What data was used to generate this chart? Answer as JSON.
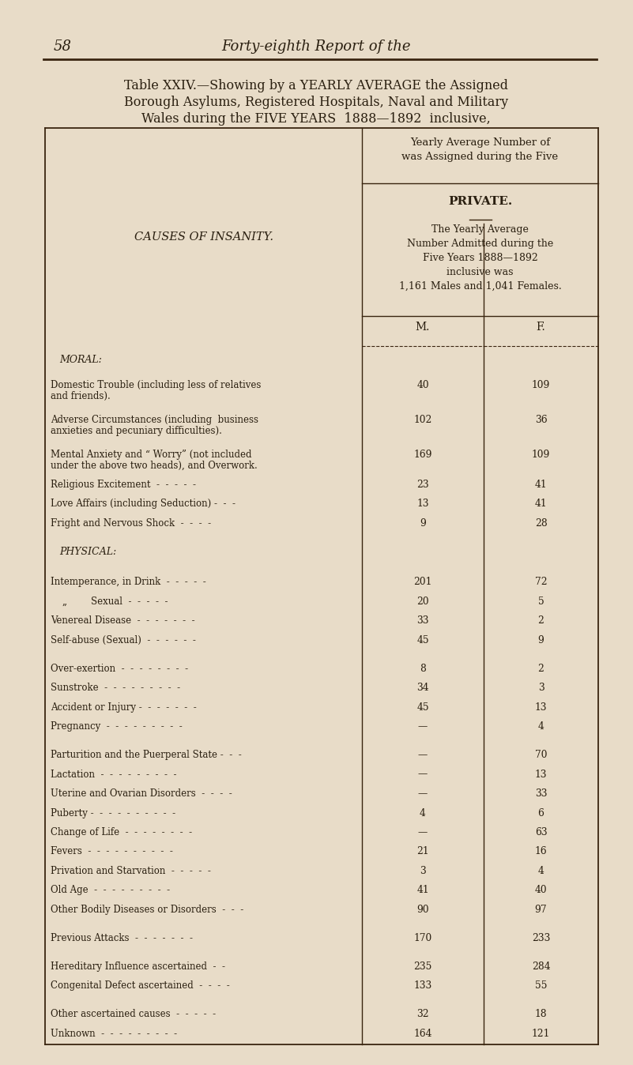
{
  "bg_color": "#e8dcc8",
  "page_number": "58",
  "header_italic": "Forty-eighth Report of the",
  "table_title_line1": "Table XXIV.—Showing by a YEARLY AVERAGE the Assigned",
  "table_title_line2": "Borough Asylums, Registered Hospitals, Naval and Military",
  "table_title_line3_pre": "Wales during the FIVE YEARS",
  "table_title_bold": "1888—1892",
  "table_title_end": "inclusive,",
  "col_header_top": "Yearly Average Number of\nwas Assigned during the Five",
  "col_header_section": "PRIVATE.",
  "col_header_desc": "The Yearly Average\nNumber Admitted during the\nFive Years 1888—1892\ninclusive was\n1,161 Males and 1,041 Females.",
  "col_m": "M.",
  "col_f": "F.",
  "left_col_header": "CAUSES OF INSANITY.",
  "rows": [
    {
      "label": "MORAL:",
      "m": "",
      "f": "",
      "type": "section_header"
    },
    {
      "label": "Domestic Trouble (including less of relatives\n    and friends).",
      "m": "40",
      "f": "109",
      "type": "data"
    },
    {
      "label": "Adverse Circumstances (including  business\n    anxieties and pecuniary difficulties).",
      "m": "102",
      "f": "36",
      "type": "data"
    },
    {
      "label": "Mental Anxiety and “ Worry” (not included\n    under the above two heads), and Overwork.",
      "m": "169",
      "f": "109",
      "type": "data"
    },
    {
      "label": "Religious Excitement  -  -  -  -  -",
      "m": "23",
      "f": "41",
      "type": "data"
    },
    {
      "label": "Love Affairs (including Seduction) -  -  -",
      "m": "13",
      "f": "41",
      "type": "data"
    },
    {
      "label": "Fright and Nervous Shock  -  -  -  -",
      "m": "9",
      "f": "28",
      "type": "data"
    },
    {
      "label": "",
      "m": "",
      "f": "",
      "type": "spacer"
    },
    {
      "label": "PHYSICAL:",
      "m": "",
      "f": "",
      "type": "section_header"
    },
    {
      "label": "",
      "m": "",
      "f": "",
      "type": "spacer"
    },
    {
      "label": "Intemperance, in Drink  -  -  -  -  -",
      "m": "201",
      "f": "72",
      "type": "data"
    },
    {
      "label": "    „        Sexual  -  -  -  -  -",
      "m": "20",
      "f": "5",
      "type": "data"
    },
    {
      "label": "Venereal Disease  -  -  -  -  -  -  -",
      "m": "33",
      "f": "2",
      "type": "data"
    },
    {
      "label": "Self-abuse (Sexual)  -  -  -  -  -  -",
      "m": "45",
      "f": "9",
      "type": "data"
    },
    {
      "label": "",
      "m": "",
      "f": "",
      "type": "spacer"
    },
    {
      "label": "Over-exertion  -  -  -  -  -  -  -  -",
      "m": "8",
      "f": "2",
      "type": "data"
    },
    {
      "label": "Sunstroke  -  -  -  -  -  -  -  -  -",
      "m": "34",
      "f": "3",
      "type": "data"
    },
    {
      "label": "Accident or Injury -  -  -  -  -  -  -",
      "m": "45",
      "f": "13",
      "type": "data"
    },
    {
      "label": "Pregnancy  -  -  -  -  -  -  -  -  -",
      "m": "—",
      "f": "4",
      "type": "data"
    },
    {
      "label": "",
      "m": "",
      "f": "",
      "type": "spacer"
    },
    {
      "label": "Parturition and the Puerperal State -  -  -",
      "m": "—",
      "f": "70",
      "type": "data"
    },
    {
      "label": "Lactation  -  -  -  -  -  -  -  -  -",
      "m": "—",
      "f": "13",
      "type": "data"
    },
    {
      "label": "Uterine and Ovarian Disorders  -  -  -  -",
      "m": "—",
      "f": "33",
      "type": "data"
    },
    {
      "label": "Puberty -  -  -  -  -  -  -  -  -  -",
      "m": "4",
      "f": "6",
      "type": "data"
    },
    {
      "label": "Change of Life  -  -  -  -  -  -  -  -",
      "m": "—",
      "f": "63",
      "type": "data"
    },
    {
      "label": "Fevers  -  -  -  -  -  -  -  -  -  -",
      "m": "21",
      "f": "16",
      "type": "data"
    },
    {
      "label": "Privation and Starvation  -  -  -  -  -",
      "m": "3",
      "f": "4",
      "type": "data"
    },
    {
      "label": "Old Age  -  -  -  -  -  -  -  -  -",
      "m": "41",
      "f": "40",
      "type": "data"
    },
    {
      "label": "Other Bodily Diseases or Disorders  -  -  -",
      "m": "90",
      "f": "97",
      "type": "data"
    },
    {
      "label": "",
      "m": "",
      "f": "",
      "type": "spacer"
    },
    {
      "label": "Previous Attacks  -  -  -  -  -  -  -",
      "m": "170",
      "f": "233",
      "type": "data"
    },
    {
      "label": "",
      "m": "",
      "f": "",
      "type": "spacer"
    },
    {
      "label": "Hereditary Influence ascertained  -  -",
      "m": "235",
      "f": "284",
      "type": "data"
    },
    {
      "label": "Congenital Defect ascertained  -  -  -  -",
      "m": "133",
      "f": "55",
      "type": "data"
    },
    {
      "label": "",
      "m": "",
      "f": "",
      "type": "spacer"
    },
    {
      "label": "Other ascertained causes  -  -  -  -  -",
      "m": "32",
      "f": "18",
      "type": "data"
    },
    {
      "label": "Unknown  -  -  -  -  -  -  -  -  -",
      "m": "164",
      "f": "121",
      "type": "data"
    }
  ]
}
